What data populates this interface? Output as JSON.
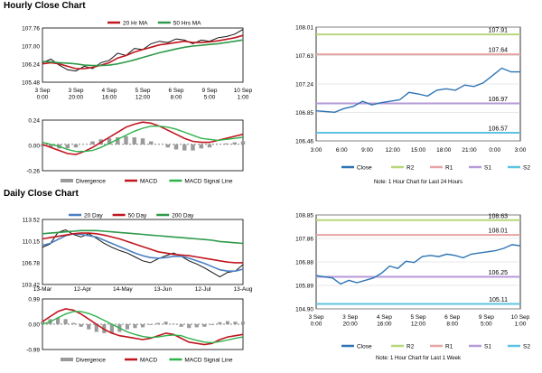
{
  "titles": {
    "hourly": "Hourly Close Chart",
    "daily": "Daily Close Chart"
  },
  "colors": {
    "price": "#111111",
    "ma_short": "#c0161e",
    "ma_long": "#2e9a4a",
    "ma_blue": "#4a7fc1",
    "divergence": "#9a9a9a",
    "macd": "#c0161e",
    "signal": "#2fb24c",
    "close": "#2e74b5",
    "r2": "#b7d67a",
    "r1": "#e8a3a3",
    "s1": "#b79ad8",
    "s2": "#5ec3e3"
  },
  "chart_data": [
    {
      "id": "hourly_price",
      "type": "line",
      "x_ticks": [
        "3 Sep\n0:00",
        "3 Sep\n20:00",
        "4 Sep\n16:00",
        "5 Sep\n12:00",
        "6 Sep\n8:00",
        "9 Sep\n5:00",
        "10 Sep\n1:00"
      ],
      "y_ticks": [
        "107.76",
        "107.00",
        "106.24",
        "105.48"
      ],
      "ylim": [
        105.48,
        107.76
      ],
      "legend": [
        "20 Hr MA",
        "50 Hrs MA"
      ],
      "series": [
        {
          "name": "price",
          "values": [
            106.3,
            106.45,
            106.2,
            106.0,
            105.95,
            106.15,
            106.05,
            106.3,
            106.4,
            106.7,
            106.6,
            106.9,
            106.85,
            107.1,
            107.2,
            107.15,
            107.3,
            107.25,
            107.1,
            107.25,
            107.2,
            107.35,
            107.4,
            107.5,
            107.7
          ]
        },
        {
          "name": "20 Hr MA",
          "values": [
            106.25,
            106.3,
            106.25,
            106.15,
            106.05,
            106.05,
            106.1,
            106.2,
            106.3,
            106.5,
            106.6,
            106.75,
            106.85,
            106.95,
            107.05,
            107.1,
            107.15,
            107.2,
            107.15,
            107.15,
            107.18,
            107.22,
            107.28,
            107.35,
            107.45
          ]
        },
        {
          "name": "50 Hrs MA",
          "values": [
            106.35,
            106.33,
            106.3,
            106.28,
            106.25,
            106.2,
            106.18,
            106.18,
            106.2,
            106.25,
            106.33,
            106.42,
            106.52,
            106.62,
            106.72,
            106.8,
            106.88,
            106.95,
            107.0,
            107.03,
            107.07,
            107.1,
            107.15,
            107.2,
            107.26
          ]
        }
      ]
    },
    {
      "id": "hourly_macd",
      "type": "line",
      "y_ticks": [
        "0.24",
        "0.00",
        "-0.26"
      ],
      "ylim": [
        -0.26,
        0.24
      ],
      "legend": [
        "Divergence",
        "MACD",
        "MACD Signal Line"
      ],
      "series": [
        {
          "name": "MACD",
          "values": [
            0.0,
            -0.03,
            -0.06,
            -0.09,
            -0.1,
            -0.07,
            -0.03,
            0.02,
            0.07,
            0.12,
            0.17,
            0.2,
            0.22,
            0.21,
            0.18,
            0.14,
            0.1,
            0.06,
            0.03,
            0.02,
            0.02,
            0.04,
            0.06,
            0.08,
            0.1
          ]
        },
        {
          "name": "MACD Signal Line",
          "values": [
            0.02,
            0.0,
            -0.02,
            -0.05,
            -0.07,
            -0.07,
            -0.06,
            -0.03,
            0.01,
            0.05,
            0.09,
            0.13,
            0.16,
            0.18,
            0.18,
            0.17,
            0.15,
            0.12,
            0.09,
            0.06,
            0.05,
            0.04,
            0.05,
            0.06,
            0.07
          ]
        },
        {
          "name": "Divergence",
          "values": [
            -0.02,
            -0.03,
            -0.04,
            -0.04,
            -0.03,
            0.0,
            0.03,
            0.05,
            0.06,
            0.07,
            0.08,
            0.07,
            0.06,
            0.03,
            0.0,
            -0.03,
            -0.05,
            -0.06,
            -0.06,
            -0.04,
            -0.03,
            0.0,
            0.01,
            0.02,
            0.03
          ]
        }
      ]
    },
    {
      "id": "hourly_close",
      "type": "line",
      "x_ticks": [
        "3:00",
        "6:00",
        "9:00",
        "12:00",
        "15:00",
        "18:00",
        "21:00",
        "0:00",
        "3:00"
      ],
      "y_ticks": [
        "108.01",
        "107.63",
        "107.24",
        "106.85",
        "106.46"
      ],
      "ylim": [
        106.46,
        108.01
      ],
      "levels": [
        {
          "name": "R2",
          "value": 107.91,
          "label": "107.91"
        },
        {
          "name": "R1",
          "value": 107.64,
          "label": "107.64"
        },
        {
          "name": "S1",
          "value": 106.97,
          "label": "106.97"
        },
        {
          "name": "S2",
          "value": 106.57,
          "label": "106.57"
        }
      ],
      "legend": [
        "Close",
        "R2",
        "R1",
        "S1",
        "S2"
      ],
      "note": "Note: 1 Hour Chart for Last 24 Hours",
      "series": [
        {
          "name": "Close",
          "values": [
            106.87,
            106.86,
            106.85,
            106.9,
            106.93,
            107.0,
            106.95,
            106.98,
            107.0,
            107.02,
            107.12,
            107.1,
            107.07,
            107.15,
            107.17,
            107.15,
            107.22,
            107.2,
            107.25,
            107.35,
            107.45,
            107.4,
            107.4
          ]
        }
      ]
    },
    {
      "id": "daily_price",
      "type": "line",
      "x_ticks": [
        "13-Mar",
        "12-Apr",
        "14-May",
        "13-Jun",
        "12-Jul",
        "13-Aug"
      ],
      "y_ticks": [
        "113.52",
        "110.15",
        "106.78",
        "103.42"
      ],
      "ylim": [
        103.42,
        113.52
      ],
      "legend": [
        "20 Day",
        "50 Day",
        "200 Day"
      ],
      "series": [
        {
          "name": "price",
          "values": [
            109.2,
            109.7,
            111.5,
            111.9,
            111.2,
            110.8,
            111.3,
            110.6,
            109.8,
            109.2,
            108.7,
            108.3,
            107.7,
            107.1,
            106.8,
            107.4,
            107.9,
            108.3,
            107.8,
            107.1,
            106.6,
            106.0,
            105.3,
            104.6,
            105.3,
            105.5,
            106.5
          ]
        },
        {
          "name": "20 Day",
          "values": [
            109.5,
            109.8,
            110.4,
            111.0,
            111.3,
            111.2,
            111.0,
            110.8,
            110.3,
            109.8,
            109.3,
            108.8,
            108.3,
            107.9,
            107.6,
            107.5,
            107.6,
            107.8,
            107.8,
            107.5,
            107.1,
            106.7,
            106.2,
            105.7,
            105.5,
            105.5,
            105.8
          ]
        },
        {
          "name": "50 Day",
          "values": [
            110.5,
            110.7,
            110.9,
            111.1,
            111.3,
            111.4,
            111.4,
            111.3,
            111.1,
            110.8,
            110.5,
            110.1,
            109.7,
            109.3,
            108.9,
            108.5,
            108.3,
            108.1,
            108.0,
            107.9,
            107.7,
            107.5,
            107.3,
            107.1,
            106.9,
            106.8,
            106.8
          ]
        },
        {
          "name": "200 Day",
          "values": [
            111.3,
            111.4,
            111.5,
            111.6,
            111.7,
            111.8,
            111.8,
            111.8,
            111.7,
            111.6,
            111.5,
            111.4,
            111.3,
            111.2,
            111.1,
            111.0,
            110.9,
            110.8,
            110.7,
            110.6,
            110.5,
            110.4,
            110.3,
            110.1,
            110.0,
            109.9,
            109.8
          ]
        }
      ]
    },
    {
      "id": "daily_macd",
      "type": "line",
      "y_ticks": [
        "0.99",
        "0.00",
        "-0.99"
      ],
      "ylim": [
        -0.99,
        0.99
      ],
      "legend": [
        "Divergence",
        "MACD",
        "MACD Signal Line"
      ],
      "series": [
        {
          "name": "MACD",
          "values": [
            0.1,
            0.3,
            0.5,
            0.6,
            0.55,
            0.4,
            0.2,
            0.0,
            -0.2,
            -0.35,
            -0.45,
            -0.5,
            -0.55,
            -0.6,
            -0.55,
            -0.45,
            -0.35,
            -0.4,
            -0.55,
            -0.7,
            -0.75,
            -0.8,
            -0.75,
            -0.6,
            -0.5,
            -0.45,
            -0.4
          ]
        },
        {
          "name": "MACD Signal Line",
          "values": [
            0.0,
            0.1,
            0.25,
            0.4,
            0.5,
            0.5,
            0.42,
            0.3,
            0.15,
            0.0,
            -0.15,
            -0.3,
            -0.4,
            -0.48,
            -0.52,
            -0.5,
            -0.45,
            -0.42,
            -0.45,
            -0.55,
            -0.63,
            -0.7,
            -0.72,
            -0.68,
            -0.62,
            -0.55,
            -0.5
          ]
        },
        {
          "name": "Divergence",
          "values": [
            0.1,
            0.2,
            0.25,
            0.2,
            0.05,
            -0.1,
            -0.2,
            -0.3,
            -0.35,
            -0.35,
            -0.3,
            -0.2,
            -0.15,
            -0.12,
            -0.03,
            0.05,
            0.1,
            0.02,
            -0.1,
            -0.15,
            -0.12,
            -0.1,
            -0.03,
            0.08,
            0.12,
            0.1,
            0.1
          ]
        }
      ]
    },
    {
      "id": "daily_close",
      "type": "line",
      "x_ticks": [
        "3 Sep\n0:00",
        "3 Sep\n20:00",
        "4 Sep\n16:00",
        "5 Sep\n12:00",
        "6 Sep\n8:00",
        "9 Sep\n5:00",
        "10 Sep\n1:00"
      ],
      "y_ticks": [
        "108.85",
        "107.86",
        "106.88",
        "105.89",
        "104.90"
      ],
      "ylim": [
        104.9,
        108.85
      ],
      "levels": [
        {
          "name": "R2",
          "value": 108.63,
          "label": "108.63"
        },
        {
          "name": "R1",
          "value": 108.01,
          "label": "108.01"
        },
        {
          "name": "S1",
          "value": 106.25,
          "label": "106.25"
        },
        {
          "name": "S2",
          "value": 105.11,
          "label": "105.11"
        }
      ],
      "legend": [
        "Close",
        "R2",
        "R1",
        "S1",
        "S2"
      ],
      "note": "Note: 1 Hour Chart for Last 1 Week",
      "series": [
        {
          "name": "Close",
          "values": [
            106.3,
            106.25,
            106.2,
            105.95,
            106.1,
            106.0,
            106.1,
            106.2,
            106.4,
            106.7,
            106.6,
            106.9,
            106.85,
            107.1,
            107.15,
            107.1,
            107.2,
            107.15,
            107.05,
            107.2,
            107.25,
            107.3,
            107.35,
            107.45,
            107.6,
            107.55
          ]
        }
      ]
    }
  ]
}
